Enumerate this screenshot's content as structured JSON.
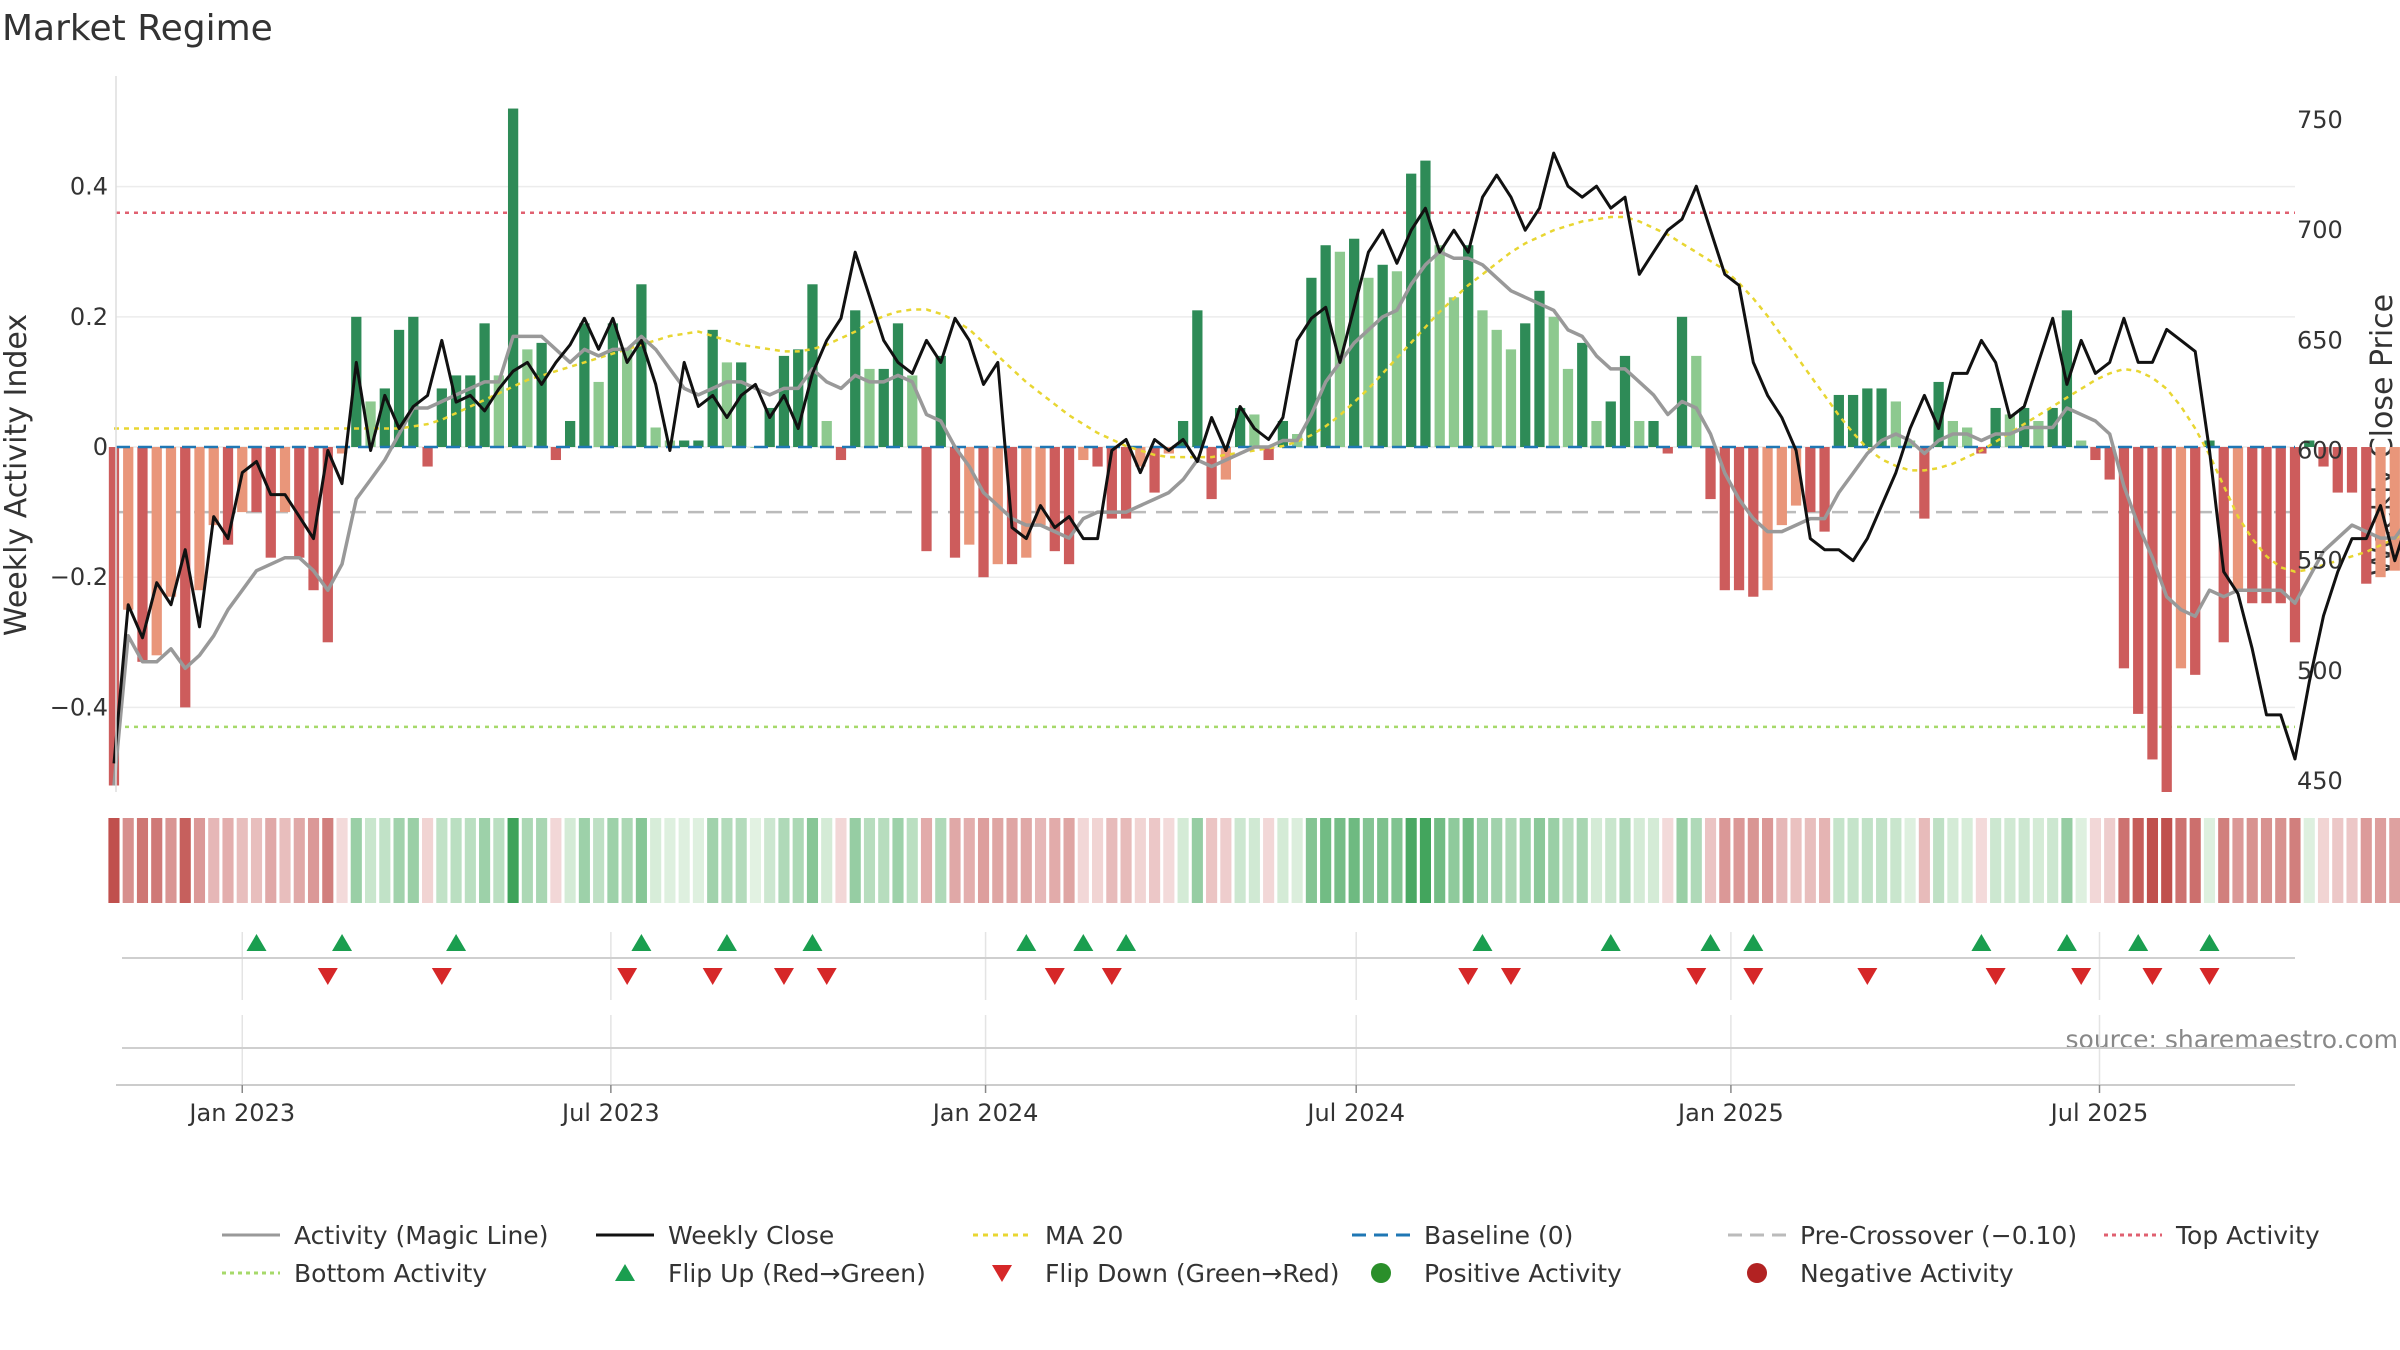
{
  "chart_data": {
    "type": "bar",
    "title": "Market Regime",
    "ylabel": "Weekly Activity Index",
    "y2label": "Weekly Close Price",
    "ylim": [
      -0.53,
      0.57
    ],
    "y2lim": [
      445,
      770
    ],
    "yticks": [
      -0.4,
      -0.2,
      0,
      0.2,
      0.4
    ],
    "ytick_labels": [
      "−0.4",
      "−0.2",
      "0",
      "0.2",
      "0.4"
    ],
    "y2ticks": [
      450,
      500,
      550,
      600,
      650,
      700,
      750
    ],
    "y2tick_labels": [
      "450",
      "500",
      "550",
      "600",
      "650",
      "700",
      "750"
    ],
    "xlim": [
      "2022-10-31",
      "2025-10-05"
    ],
    "xtick_dates": [
      "2023-01-01",
      "2023-07-01",
      "2024-01-01",
      "2024-07-01",
      "2025-01-01",
      "2025-07-01"
    ],
    "xtick_labels": [
      "Jan 2023",
      "Jul 2023",
      "Jan 2024",
      "Jul 2024",
      "Jan 2025",
      "Jul 2025"
    ],
    "x_start": "2022-10-30",
    "week_step_days": 7,
    "activity": [
      -0.52,
      -0.25,
      -0.33,
      -0.32,
      -0.23,
      -0.4,
      -0.22,
      -0.12,
      -0.15,
      -0.1,
      -0.1,
      -0.17,
      -0.1,
      -0.17,
      -0.22,
      -0.3,
      -0.01,
      0.2,
      0.07,
      0.09,
      0.18,
      0.2,
      -0.03,
      0.09,
      0.11,
      0.11,
      0.19,
      0.11,
      0.52,
      0.15,
      0.16,
      -0.02,
      0.04,
      0.19,
      0.1,
      0.19,
      0.15,
      0.25,
      0.03,
      0.01,
      0.01,
      0.01,
      0.18,
      0.13,
      0.13,
      0,
      0.06,
      0.14,
      0.15,
      0.25,
      0.04,
      -0.02,
      0.21,
      0.12,
      0.12,
      0.19,
      0.11,
      -0.16,
      0.14,
      -0.17,
      -0.15,
      -0.2,
      -0.18,
      -0.18,
      -0.17,
      -0.12,
      -0.16,
      -0.18,
      -0.02,
      -0.03,
      -0.11,
      -0.11,
      -0.03,
      -0.07,
      -0.01,
      0.04,
      0.21,
      -0.08,
      -0.05,
      0.06,
      0.05,
      -0.02,
      0.04,
      0.02,
      0.26,
      0.31,
      0.3,
      0.32,
      0.26,
      0.28,
      0.27,
      0.42,
      0.44,
      0.31,
      0.23,
      0.31,
      0.21,
      0.18,
      0.15,
      0.19,
      0.24,
      0.2,
      0.12,
      0.16,
      0.04,
      0.07,
      0.14,
      0.04,
      0.04,
      -0.01,
      0.2,
      0.14,
      -0.08,
      -0.22,
      -0.22,
      -0.23,
      -0.22,
      -0.12,
      -0.09,
      -0.1,
      -0.13,
      0.08,
      0.08,
      0.09,
      0.09,
      0.07,
      0.01,
      -0.11,
      0.1,
      0.04,
      0.03,
      -0.01,
      0.06,
      0.05,
      0.06,
      0.04,
      0.06,
      0.21,
      0.01,
      -0.02,
      -0.05,
      -0.34,
      -0.41,
      -0.48,
      -0.53,
      -0.34,
      -0.35,
      0.01,
      -0.3,
      -0.22,
      -0.24,
      -0.24,
      -0.24,
      -0.3,
      0.01,
      -0.03,
      -0.07,
      -0.07,
      -0.21,
      -0.2,
      -0.19,
      0.01,
      -0.14,
      -0.14,
      -0.16,
      -0.14,
      0.01,
      -0.16,
      -0.12,
      -0.1
    ],
    "weekly_close": [
      458,
      530,
      515,
      540,
      530,
      555,
      520,
      570,
      560,
      590,
      595,
      580,
      580,
      570,
      560,
      600,
      585,
      640,
      600,
      625,
      610,
      620,
      625,
      650,
      622,
      625,
      618,
      628,
      636,
      640,
      630,
      640,
      648,
      660,
      646,
      660,
      640,
      650,
      630,
      600,
      640,
      620,
      625,
      615,
      625,
      630,
      615,
      625,
      610,
      635,
      650,
      660,
      690,
      670,
      650,
      640,
      635,
      650,
      640,
      660,
      650,
      630,
      640,
      565,
      560,
      575,
      565,
      570,
      560,
      560,
      600,
      605,
      590,
      605,
      600,
      605,
      595,
      615,
      600,
      620,
      610,
      605,
      615,
      650,
      660,
      665,
      640,
      665,
      690,
      700,
      685,
      700,
      710,
      690,
      700,
      690,
      715,
      725,
      715,
      700,
      710,
      735,
      720,
      715,
      720,
      710,
      715,
      680,
      690,
      700,
      705,
      720,
      700,
      680,
      675,
      640,
      625,
      615,
      600,
      560,
      555,
      555,
      550,
      560,
      575,
      590,
      610,
      625,
      610,
      635,
      635,
      650,
      640,
      615,
      620,
      640,
      660,
      630,
      650,
      635,
      640,
      660,
      640,
      640,
      655,
      650,
      645,
      600,
      545,
      535,
      510,
      480,
      480,
      460,
      495,
      525,
      545,
      560,
      560,
      575,
      550,
      570,
      565,
      565,
      560,
      580,
      600,
      615,
      610,
      600,
      605,
      630,
      625,
      630,
      630,
      635,
      625,
      640,
      630,
      648,
      640
    ],
    "magic_line": [
      -0.52,
      -0.29,
      -0.33,
      -0.33,
      -0.31,
      -0.34,
      -0.32,
      -0.29,
      -0.25,
      -0.22,
      -0.19,
      -0.18,
      -0.17,
      -0.17,
      -0.19,
      -0.22,
      -0.18,
      -0.08,
      -0.05,
      -0.02,
      0.02,
      0.06,
      0.06,
      0.07,
      0.08,
      0.09,
      0.1,
      0.1,
      0.17,
      0.17,
      0.17,
      0.15,
      0.13,
      0.15,
      0.14,
      0.15,
      0.15,
      0.17,
      0.15,
      0.12,
      0.09,
      0.08,
      0.09,
      0.1,
      0.1,
      0.09,
      0.08,
      0.09,
      0.09,
      0.12,
      0.1,
      0.09,
      0.11,
      0.1,
      0.1,
      0.11,
      0.1,
      0.05,
      0.04,
      0,
      -0.03,
      -0.07,
      -0.09,
      -0.11,
      -0.12,
      -0.12,
      -0.13,
      -0.14,
      -0.11,
      -0.1,
      -0.1,
      -0.1,
      -0.09,
      -0.08,
      -0.07,
      -0.05,
      -0.02,
      -0.03,
      -0.02,
      -0.01,
      0,
      0,
      0.01,
      0.01,
      0.05,
      0.1,
      0.13,
      0.16,
      0.18,
      0.2,
      0.21,
      0.25,
      0.28,
      0.3,
      0.29,
      0.29,
      0.28,
      0.26,
      0.24,
      0.23,
      0.22,
      0.21,
      0.18,
      0.17,
      0.14,
      0.12,
      0.12,
      0.1,
      0.08,
      0.05,
      0.07,
      0.06,
      0.02,
      -0.04,
      -0.08,
      -0.11,
      -0.13,
      -0.13,
      -0.12,
      -0.11,
      -0.11,
      -0.07,
      -0.04,
      -0.01,
      0.01,
      0.02,
      0.01,
      -0.01,
      0.01,
      0.02,
      0.02,
      0.01,
      0.02,
      0.02,
      0.03,
      0.03,
      0.03,
      0.06,
      0.05,
      0.04,
      0.02,
      -0.06,
      -0.12,
      -0.17,
      -0.23,
      -0.25,
      -0.26,
      -0.22,
      -0.23,
      -0.22,
      -0.22,
      -0.22,
      -0.22,
      -0.24,
      -0.2,
      -0.16,
      -0.14,
      -0.12,
      -0.13,
      -0.14,
      -0.14,
      -0.11,
      -0.12,
      -0.12,
      -0.13,
      -0.13,
      -0.1,
      -0.11,
      -0.11,
      -0.11
    ],
    "ma20": [
      610,
      610,
      610,
      610,
      610,
      610,
      610,
      610,
      610,
      610,
      610,
      610,
      610,
      610,
      610,
      610,
      610,
      610,
      610,
      610,
      610,
      611,
      612,
      614,
      617,
      620,
      623,
      626,
      629,
      632,
      634,
      636,
      638,
      640,
      642,
      644,
      646,
      648,
      650,
      652,
      653,
      654,
      652,
      650,
      648,
      647,
      646,
      645,
      645,
      646,
      648,
      651,
      654,
      658,
      661,
      663,
      664,
      664,
      662,
      659,
      655,
      649,
      643,
      637,
      631,
      626,
      621,
      616,
      612,
      608,
      605,
      602,
      600,
      598,
      597,
      597,
      597,
      597,
      598,
      599,
      600,
      601,
      602,
      604,
      607,
      611,
      616,
      622,
      628,
      635,
      642,
      649,
      656,
      663,
      669,
      675,
      680,
      685,
      690,
      694,
      697,
      700,
      702,
      704,
      705,
      706,
      706,
      704,
      701,
      698,
      694,
      690,
      686,
      682,
      676,
      669,
      661,
      652,
      643,
      634,
      625,
      616,
      608,
      601,
      596,
      593,
      591,
      591,
      592,
      594,
      597,
      600,
      604,
      608,
      612,
      616,
      620,
      624,
      628,
      632,
      635,
      637,
      636,
      633,
      628,
      620,
      610,
      598,
      584,
      570,
      560,
      552,
      547,
      545,
      546,
      548,
      550,
      552,
      554,
      557,
      560,
      564,
      568,
      572,
      576,
      580,
      584,
      588,
      592,
      596,
      600,
      604,
      608,
      612,
      616,
      619,
      621
    ],
    "baseline": 0,
    "pre_crossover": -0.1,
    "top_activity": 0.36,
    "bottom_activity": -0.43,
    "flip_up_dates": [
      "2023-01-08",
      "2023-02-19",
      "2023-04-16",
      "2023-07-16",
      "2023-08-27",
      "2023-10-08",
      "2024-01-21",
      "2024-02-18",
      "2024-03-10",
      "2024-09-01",
      "2024-11-03",
      "2024-12-22",
      "2025-01-12",
      "2025-05-04",
      "2025-06-15",
      "2025-07-20",
      "2025-08-24"
    ],
    "flip_down_dates": [
      "2023-02-12",
      "2023-04-09",
      "2023-07-09",
      "2023-08-20",
      "2023-09-24",
      "2023-10-15",
      "2024-02-04",
      "2024-03-03",
      "2024-08-25",
      "2024-09-15",
      "2024-12-15",
      "2025-01-12",
      "2025-03-09",
      "2025-05-11",
      "2025-06-22",
      "2025-07-27",
      "2025-08-24"
    ],
    "source_text": "source: sharemaestro.com",
    "colors": {
      "strong_green": "#2e8b57",
      "light_green": "#8dc98f",
      "strong_red": "#cd5c5c",
      "light_red": "#e9967a",
      "magic_line": "#999999",
      "weekly_close": "#111111",
      "ma20": "#e8d632",
      "baseline": "#1f77b4",
      "pre_crossover": "#bbbbbb",
      "top_activity": "#e06070",
      "bottom_activity": "#a6d96a",
      "flip_up": "#1a9e4f",
      "flip_down": "#d62728",
      "positive_dot": "#2a8f2a",
      "negative_dot": "#b22222"
    },
    "legend": [
      {
        "label": "Activity (Magic Line)",
        "kind": "line",
        "color": "#999999",
        "dash": ""
      },
      {
        "label": "Weekly Close",
        "kind": "line",
        "color": "#111111",
        "dash": ""
      },
      {
        "label": "MA 20",
        "kind": "line",
        "color": "#e8d632",
        "dash": "5,5"
      },
      {
        "label": "Baseline (0)",
        "kind": "line",
        "color": "#1f77b4",
        "dash": "14,8"
      },
      {
        "label": "Pre-Crossover (−0.10)",
        "kind": "line",
        "color": "#bbbbbb",
        "dash": "14,8"
      },
      {
        "label": "Top Activity",
        "kind": "line",
        "color": "#e06070",
        "dash": "4,4"
      },
      {
        "label": "Bottom Activity",
        "kind": "line",
        "color": "#a6d96a",
        "dash": "4,4"
      },
      {
        "label": "Flip Up (Red→Green)",
        "kind": "tri-up",
        "color": "#1a9e4f",
        "dash": ""
      },
      {
        "label": "Flip Down (Green→Red)",
        "kind": "tri-down",
        "color": "#d62728",
        "dash": ""
      },
      {
        "label": "Positive Activity",
        "kind": "dot",
        "color": "#2a8f2a",
        "dash": ""
      },
      {
        "label": "Negative Activity",
        "kind": "dot",
        "color": "#b22222",
        "dash": ""
      }
    ]
  }
}
